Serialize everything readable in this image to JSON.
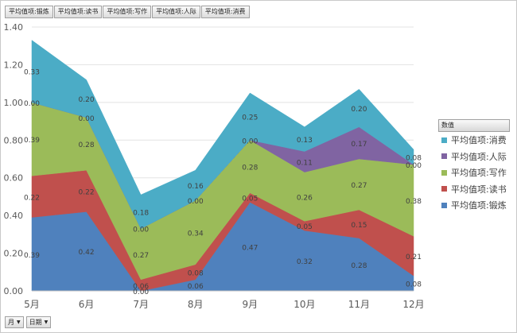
{
  "field_buttons": [
    "平均值项:锻炼",
    "平均值项:读书",
    "平均值项:写作",
    "平均值项:人际",
    "平均值项:消费"
  ],
  "legend_title": "数值",
  "bottom_buttons": [
    "月",
    "日期"
  ],
  "chart_data": {
    "type": "area",
    "stacked": true,
    "categories": [
      "5月",
      "6月",
      "7月",
      "8月",
      "9月",
      "10月",
      "11月",
      "12月"
    ],
    "ylim": [
      0,
      1.4
    ],
    "yticks": [
      "0.00",
      "0.20",
      "0.40",
      "0.60",
      "0.80",
      "1.00",
      "1.20",
      "1.40"
    ],
    "grid": true,
    "legend_position": "right",
    "series": [
      {
        "name": "平均值项:锻炼",
        "color": "#4f81bd",
        "values": [
          0.39,
          0.42,
          0.0,
          0.06,
          0.47,
          0.32,
          0.28,
          0.08
        ],
        "labels": [
          "0.39",
          "0.42",
          "0.00",
          "0.06",
          "0.47",
          "0.32",
          "0.28",
          "0.08"
        ]
      },
      {
        "name": "平均值项:读书",
        "color": "#c0504d",
        "values": [
          0.22,
          0.22,
          0.06,
          0.08,
          0.05,
          0.05,
          0.15,
          0.21
        ],
        "labels": [
          "0.22",
          "0.22",
          "0.06",
          "0.08",
          "0.05",
          "0.05",
          "0.15",
          "0.21"
        ]
      },
      {
        "name": "平均值项:写作",
        "color": "#9bbb59",
        "values": [
          0.39,
          0.28,
          0.27,
          0.34,
          0.28,
          0.26,
          0.27,
          0.38
        ],
        "labels": [
          "0.39",
          "0.28",
          "0.27",
          "0.34",
          "0.28",
          "0.26",
          "0.27",
          "0.38"
        ]
      },
      {
        "name": "平均值项:人际",
        "color": "#8064a2",
        "values": [
          0.0,
          0.0,
          0.0,
          0.0,
          0.0,
          0.11,
          0.17,
          0.0
        ],
        "labels": [
          "0.00",
          "0.00",
          "0.00",
          "0.00",
          "0.00",
          "0.11",
          "0.17",
          "0.00"
        ]
      },
      {
        "name": "平均值项:消费",
        "color": "#4bacc6",
        "values": [
          0.33,
          0.2,
          0.18,
          0.16,
          0.25,
          0.13,
          0.2,
          0.08
        ],
        "labels": [
          "0.33",
          "0.20",
          "0.18",
          "0.16",
          "0.25",
          "0.13",
          "0.20",
          "0.08"
        ]
      }
    ]
  }
}
